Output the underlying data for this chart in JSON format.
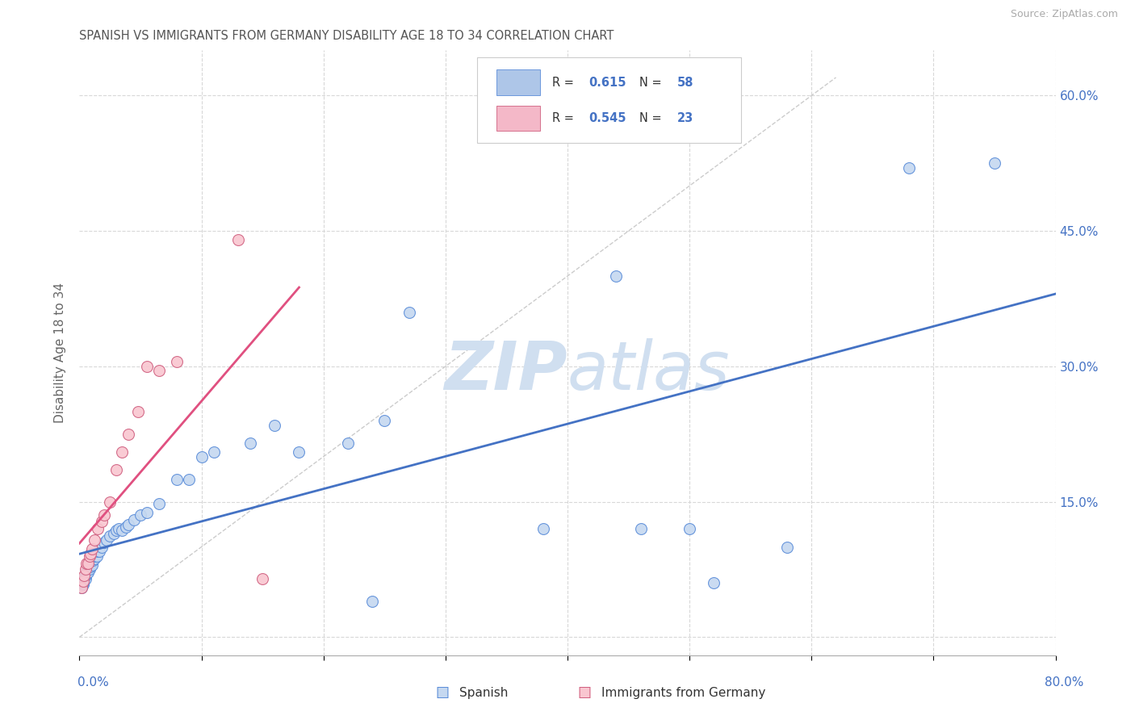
{
  "title": "SPANISH VS IMMIGRANTS FROM GERMANY DISABILITY AGE 18 TO 34 CORRELATION CHART",
  "source": "Source: ZipAtlas.com",
  "ylabel": "Disability Age 18 to 34",
  "xlim": [
    0.0,
    0.8
  ],
  "ylim": [
    -0.02,
    0.65
  ],
  "yticks": [
    0.0,
    0.15,
    0.3,
    0.45,
    0.6
  ],
  "ytick_labels": [
    "",
    "15.0%",
    "30.0%",
    "45.0%",
    "60.0%"
  ],
  "xticks": [
    0.0,
    0.1,
    0.2,
    0.3,
    0.4,
    0.5,
    0.6,
    0.7,
    0.8
  ],
  "spanish_R": 0.615,
  "spanish_N": 58,
  "germany_R": 0.545,
  "germany_N": 23,
  "legend_R1_color": "#aec6e8",
  "legend_R2_color": "#f4b8c8",
  "blue_line_color": "#4472C4",
  "pink_line_color": "#e05080",
  "scatter_blue_face": "#c5d8f0",
  "scatter_blue_edge": "#5b8dd9",
  "scatter_pink_face": "#f9c6d0",
  "scatter_pink_edge": "#d06080",
  "watermark_color": "#d0dff0",
  "grid_color": "#d8d8d8",
  "title_color": "#555555",
  "axis_label_color": "#4472C4",
  "spanish_x": [
    0.002,
    0.003,
    0.004,
    0.005,
    0.005,
    0.005,
    0.006,
    0.006,
    0.007,
    0.007,
    0.008,
    0.008,
    0.009,
    0.009,
    0.009,
    0.01,
    0.01,
    0.011,
    0.012,
    0.012,
    0.013,
    0.013,
    0.015,
    0.017,
    0.018,
    0.02,
    0.021,
    0.022,
    0.025,
    0.027,
    0.028,
    0.03,
    0.032,
    0.035,
    0.038,
    0.04,
    0.042,
    0.045,
    0.05,
    0.055,
    0.065,
    0.07,
    0.08,
    0.09,
    0.1,
    0.11,
    0.13,
    0.15,
    0.16,
    0.18,
    0.22,
    0.24,
    0.27,
    0.38,
    0.44,
    0.52,
    0.68,
    0.75
  ],
  "spanish_y": [
    0.055,
    0.06,
    0.065,
    0.065,
    0.068,
    0.07,
    0.072,
    0.075,
    0.07,
    0.073,
    0.075,
    0.078,
    0.075,
    0.08,
    0.082,
    0.08,
    0.085,
    0.085,
    0.085,
    0.09,
    0.085,
    0.09,
    0.095,
    0.095,
    0.1,
    0.1,
    0.105,
    0.108,
    0.11,
    0.115,
    0.115,
    0.12,
    0.115,
    0.12,
    0.115,
    0.125,
    0.12,
    0.13,
    0.135,
    0.14,
    0.145,
    0.16,
    0.175,
    0.175,
    0.195,
    0.205,
    0.205,
    0.215,
    0.235,
    0.2,
    0.215,
    0.04,
    0.36,
    0.095,
    0.4,
    0.06,
    0.52,
    0.525
  ],
  "germany_x": [
    0.002,
    0.003,
    0.004,
    0.005,
    0.006,
    0.007,
    0.008,
    0.009,
    0.01,
    0.012,
    0.014,
    0.016,
    0.018,
    0.02,
    0.022,
    0.025,
    0.03,
    0.035,
    0.04,
    0.05,
    0.06,
    0.13,
    0.15
  ],
  "germany_y": [
    0.055,
    0.06,
    0.065,
    0.072,
    0.08,
    0.08,
    0.085,
    0.09,
    0.095,
    0.1,
    0.105,
    0.115,
    0.12,
    0.125,
    0.13,
    0.145,
    0.18,
    0.2,
    0.22,
    0.245,
    0.3,
    0.44,
    0.065
  ]
}
